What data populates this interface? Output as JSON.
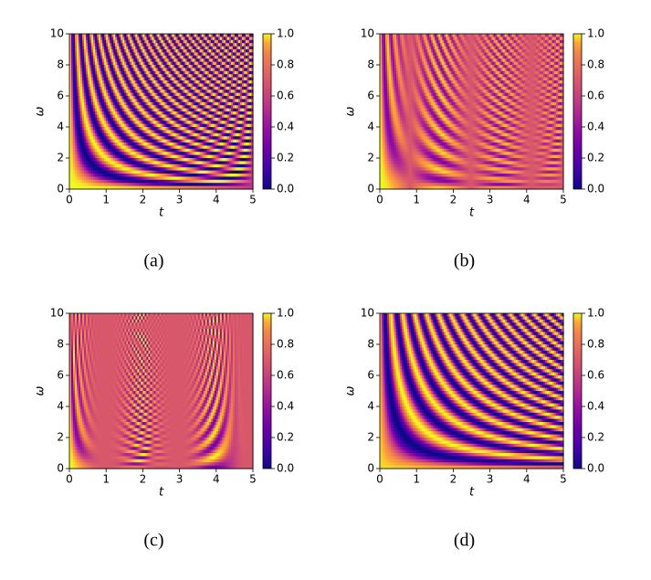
{
  "chart_data": [
    {
      "type": "heatmap",
      "caption": "(a)",
      "xlabel": "t",
      "ylabel": "ω",
      "xlim": [
        0,
        5
      ],
      "xticks": [
        0,
        1,
        2,
        3,
        4,
        5
      ],
      "ylim": [
        0,
        10
      ],
      "yticks": [
        0,
        2,
        4,
        6,
        8,
        10
      ],
      "colormap": "plasma",
      "clim": [
        0,
        1
      ],
      "cticks": [
        {
          "value": 0,
          "label": "0.0"
        },
        {
          "value": 0.2,
          "label": "0.2"
        },
        {
          "value": 0.4,
          "label": "0.4"
        },
        {
          "value": 0.6,
          "label": "0.6"
        },
        {
          "value": 0.8,
          "label": "0.8"
        },
        {
          "value": 1,
          "label": "1.0"
        }
      ]
    },
    {
      "type": "heatmap",
      "caption": "(b)",
      "xlabel": "t",
      "ylabel": "ω",
      "xlim": [
        0,
        5
      ],
      "xticks": [
        0,
        1,
        2,
        3,
        4,
        5
      ],
      "ylim": [
        0,
        10
      ],
      "yticks": [
        0,
        2,
        4,
        6,
        8,
        10
      ],
      "colormap": "plasma",
      "clim": [
        0,
        1
      ],
      "cticks": [
        {
          "value": 0,
          "label": "0.0"
        },
        {
          "value": 0.2,
          "label": "0.2"
        },
        {
          "value": 0.4,
          "label": "0.4"
        },
        {
          "value": 0.6,
          "label": "0.6"
        },
        {
          "value": 0.8,
          "label": "0.8"
        },
        {
          "value": 1,
          "label": "1.0"
        }
      ]
    },
    {
      "type": "heatmap",
      "caption": "(c)",
      "xlabel": "t",
      "ylabel": "ω",
      "xlim": [
        0,
        5
      ],
      "xticks": [
        0,
        1,
        2,
        3,
        4,
        5
      ],
      "ylim": [
        0,
        10
      ],
      "yticks": [
        0,
        2,
        4,
        6,
        8,
        10
      ],
      "colormap": "plasma",
      "clim": [
        0,
        1
      ],
      "cticks": [
        {
          "value": 0,
          "label": "0.0"
        },
        {
          "value": 0.2,
          "label": "0.2"
        },
        {
          "value": 0.4,
          "label": "0.4"
        },
        {
          "value": 0.6,
          "label": "0.6"
        },
        {
          "value": 0.8,
          "label": "0.8"
        },
        {
          "value": 1,
          "label": "1.0"
        }
      ]
    },
    {
      "type": "heatmap",
      "caption": "(d)",
      "xlabel": "t",
      "ylabel": "ω",
      "xlim": [
        0,
        5
      ],
      "xticks": [
        0,
        1,
        2,
        3,
        4,
        5
      ],
      "ylim": [
        0,
        10
      ],
      "yticks": [
        0,
        2,
        4,
        6,
        8,
        10
      ],
      "colormap": "plasma",
      "clim": [
        0,
        1
      ],
      "cticks": [
        {
          "value": 0,
          "label": "0.0"
        },
        {
          "value": 0.2,
          "label": "0.2"
        },
        {
          "value": 0.4,
          "label": "0.4"
        },
        {
          "value": 0.6,
          "label": "0.6"
        },
        {
          "value": 0.8,
          "label": "0.8"
        },
        {
          "value": 1,
          "label": "1.0"
        }
      ]
    }
  ]
}
